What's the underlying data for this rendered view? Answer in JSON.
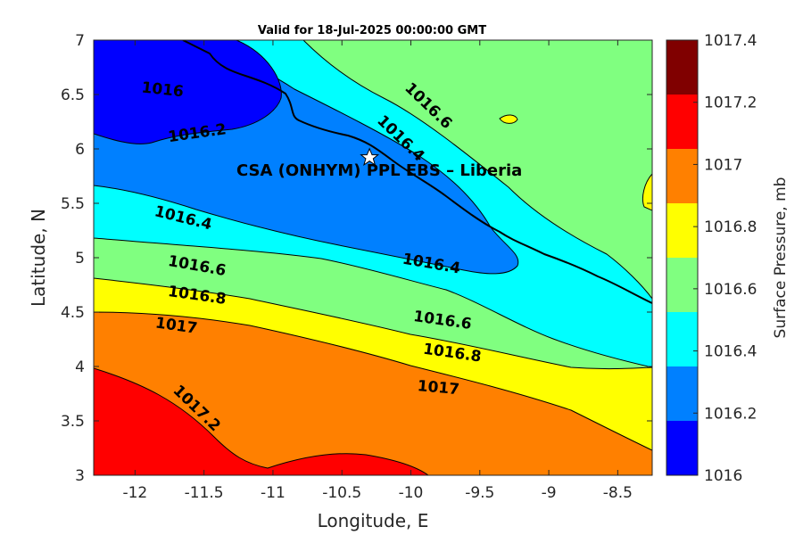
{
  "title": "Valid for 18-Jul-2025 00:00:00 GMT",
  "site_label": "CSA (ONHYM) PPL EBS  – Liberia",
  "site_marker": {
    "lon": -10.3,
    "lat": 5.92
  },
  "chart_data": {
    "type": "contour-map",
    "xlabel": "Longitude, E",
    "ylabel": "Latitude, N",
    "xlim": [
      -12.3,
      -8.25
    ],
    "ylim": [
      3,
      7
    ],
    "xticks": [
      "-12",
      "-11.5",
      "-11",
      "-10.5",
      "-10",
      "-9.5",
      "-9",
      "-8.5"
    ],
    "xtick_values": [
      -12,
      -11.5,
      -11,
      -10.5,
      -10,
      -9.5,
      -9,
      -8.5
    ],
    "yticks": [
      "3",
      "3.5",
      "4",
      "4.5",
      "5",
      "5.5",
      "6",
      "6.5",
      "7"
    ],
    "ytick_values": [
      3,
      3.5,
      4,
      4.5,
      5,
      5.5,
      6,
      6.5,
      7
    ],
    "colorbar": {
      "label": "Surface Pressure, mb",
      "levels": [
        "1016",
        "1016.2",
        "1016.4",
        "1016.6",
        "1016.8",
        "1017",
        "1017.2",
        "1017.4"
      ],
      "colors": [
        "#0000ff",
        "#0080ff",
        "#00ffff",
        "#80ff80",
        "#ffff00",
        "#ff8000",
        "#ff0000",
        "#800000"
      ]
    },
    "contour_labels": [
      {
        "text": "1016",
        "lon": -11.8,
        "lat": 6.55,
        "angle": 6
      },
      {
        "text": "1016.2",
        "lon": -11.55,
        "lat": 6.15,
        "angle": -8
      },
      {
        "text": "1016.4",
        "lon": -11.65,
        "lat": 5.37,
        "angle": 14
      },
      {
        "text": "1016.4",
        "lon": -9.85,
        "lat": 4.95,
        "angle": 10
      },
      {
        "text": "1016.4",
        "lon": -10.07,
        "lat": 6.1,
        "angle": 44
      },
      {
        "text": "1016.6",
        "lon": -9.87,
        "lat": 6.4,
        "angle": 44
      },
      {
        "text": "1016.6",
        "lon": -11.55,
        "lat": 4.93,
        "angle": 10
      },
      {
        "text": "1016.6",
        "lon": -9.77,
        "lat": 4.43,
        "angle": 8
      },
      {
        "text": "1016.8",
        "lon": -11.55,
        "lat": 4.66,
        "angle": 8
      },
      {
        "text": "1016.8",
        "lon": -9.7,
        "lat": 4.13,
        "angle": 8
      },
      {
        "text": "1017",
        "lon": -11.7,
        "lat": 4.38,
        "angle": 8
      },
      {
        "text": "1017",
        "lon": -9.8,
        "lat": 3.81,
        "angle": 5
      },
      {
        "text": "1017.2",
        "lon": -11.55,
        "lat": 3.62,
        "angle": 44
      }
    ]
  }
}
